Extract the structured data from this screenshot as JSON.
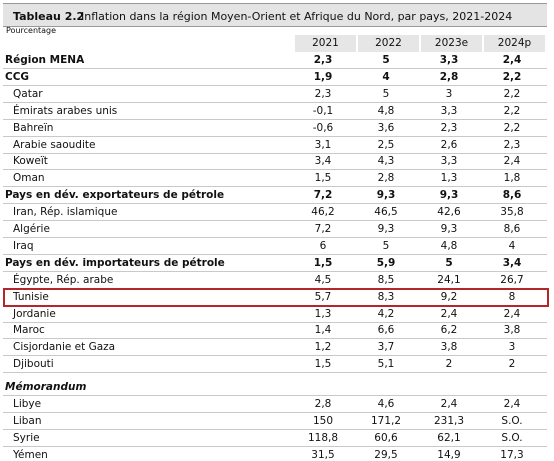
{
  "header": {
    "label": "Tableau 2.2",
    "title": "Inflation dans la région Moyen-Orient et Afrique du Nord, par pays, 2021-2024",
    "unit": "Pourcentage"
  },
  "table": {
    "columns": [
      "2021",
      "2022",
      "2023e",
      "2024p"
    ],
    "rows": [
      {
        "label": "Région MENA",
        "values": [
          "2,3",
          "5",
          "3,3",
          "2,4"
        ]
      },
      {
        "label": "CCG",
        "values": [
          "1,9",
          "4",
          "2,8",
          "2,2"
        ]
      },
      {
        "label": "Qatar",
        "values": [
          "2,3",
          "5",
          "3",
          "2,2"
        ]
      },
      {
        "label": "Émirats arabes unis",
        "values": [
          "-0,1",
          "4,8",
          "3,3",
          "2,2"
        ]
      },
      {
        "label": "Bahreïn",
        "values": [
          "-0,6",
          "3,6",
          "2,3",
          "2,2"
        ]
      },
      {
        "label": "Arabie saoudite",
        "values": [
          "3,1",
          "2,5",
          "2,6",
          "2,3"
        ]
      },
      {
        "label": "Koweït",
        "values": [
          "3,4",
          "4,3",
          "3,3",
          "2,4"
        ]
      },
      {
        "label": "Oman",
        "values": [
          "1,5",
          "2,8",
          "1,3",
          "1,8"
        ]
      },
      {
        "label": "Pays en dév. exportateurs de pétrole",
        "values": [
          "7,2",
          "9,3",
          "9,3",
          "8,6"
        ]
      },
      {
        "label": "Iran, Rép. islamique",
        "values": [
          "46,2",
          "46,5",
          "42,6",
          "35,8"
        ]
      },
      {
        "label": "Algérie",
        "values": [
          "7,2",
          "9,3",
          "9,3",
          "8,6"
        ]
      },
      {
        "label": "Iraq",
        "values": [
          "6",
          "5",
          "4,8",
          "4"
        ]
      },
      {
        "label": "Pays en dév. importateurs de pétrole",
        "values": [
          "1,5",
          "5,9",
          "5",
          "3,4"
        ]
      },
      {
        "label": "Égypte, Rép. arabe",
        "values": [
          "4,5",
          "8,5",
          "24,1",
          "26,7"
        ]
      },
      {
        "label": "Tunisie",
        "values": [
          "5,7",
          "8,3",
          "9,2",
          "8"
        ]
      },
      {
        "label": "Jordanie",
        "values": [
          "1,3",
          "4,2",
          "2,4",
          "2,4"
        ]
      },
      {
        "label": "Maroc",
        "values": [
          "1,4",
          "6,6",
          "6,2",
          "3,8"
        ]
      },
      {
        "label": "Cisjordanie et Gaza",
        "values": [
          "1,2",
          "3,7",
          "3,8",
          "3"
        ]
      },
      {
        "label": "Djibouti",
        "values": [
          "1,5",
          "5,1",
          "2",
          "2"
        ]
      },
      {
        "label": "Mémorandum"
      },
      {
        "label": "Libye",
        "values": [
          "2,8",
          "4,6",
          "2,4",
          "2,4"
        ]
      },
      {
        "label": "Liban",
        "values": [
          "150",
          "171,2",
          "231,3",
          "S.O."
        ]
      },
      {
        "label": "Syrie",
        "values": [
          "118,8",
          "60,6",
          "62,1",
          "S.O."
        ]
      },
      {
        "label": "Yémen",
        "values": [
          "31,5",
          "29,5",
          "14,9",
          "17,3"
        ]
      }
    ]
  }
}
